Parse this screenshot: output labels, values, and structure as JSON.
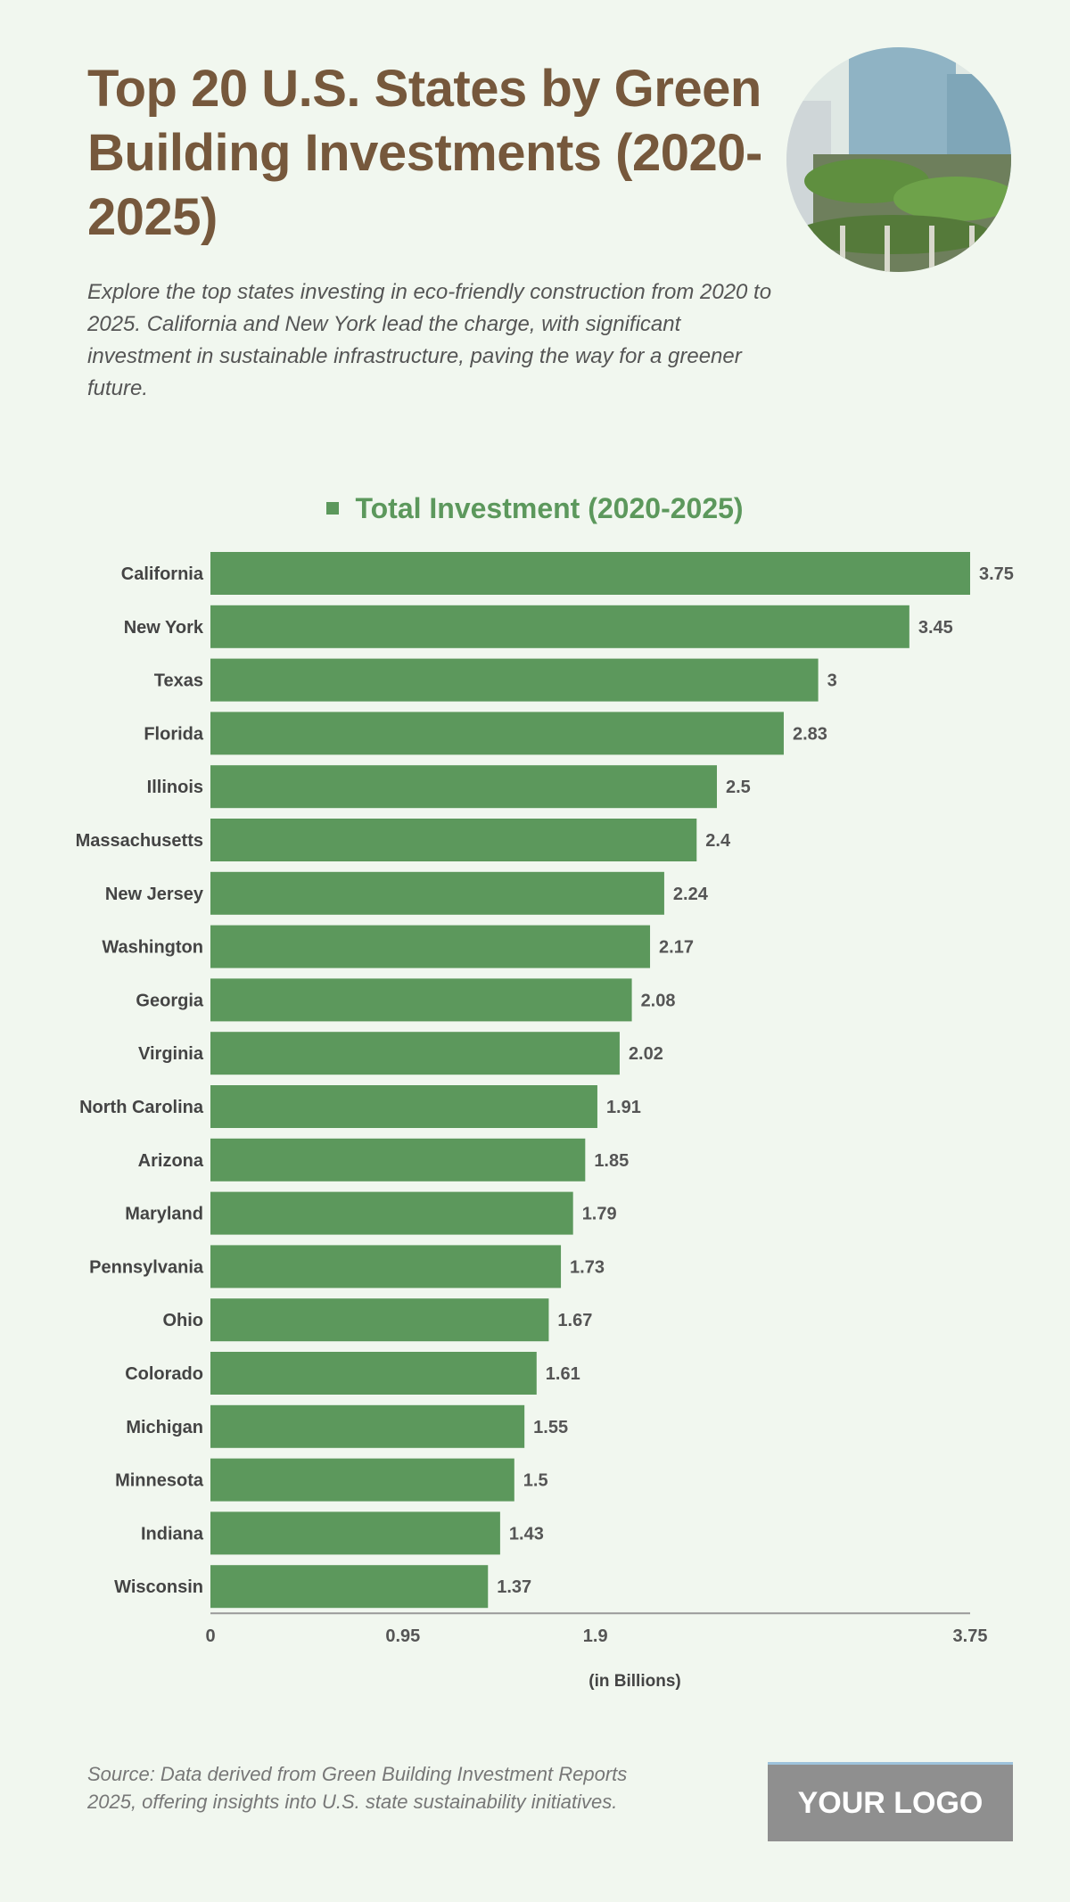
{
  "header": {
    "title": "Top 20 U.S. States by Green Building Investments (2020-2025)",
    "subtitle": "Explore the top states investing in eco-friendly construction from 2020 to 2025. California and New York lead the charge, with significant investment in sustainable infrastructure, paving the way for a greener future."
  },
  "chart_data": {
    "type": "bar",
    "orientation": "horizontal",
    "categories": [
      "California",
      "New York",
      "Texas",
      "Florida",
      "Illinois",
      "Massachusetts",
      "New Jersey",
      "Washington",
      "Georgia",
      "Virginia",
      "North Carolina",
      "Arizona",
      "Maryland",
      "Pennsylvania",
      "Ohio",
      "Colorado",
      "Michigan",
      "Minnesota",
      "Indiana",
      "Wisconsin"
    ],
    "series": [
      {
        "name": "Total Investment (2020-2025)",
        "values": [
          3.75,
          3.45,
          3,
          2.83,
          2.5,
          2.4,
          2.24,
          2.17,
          2.08,
          2.02,
          1.91,
          1.85,
          1.79,
          1.73,
          1.67,
          1.61,
          1.55,
          1.5,
          1.43,
          1.37
        ],
        "color": "#5c985c"
      }
    ],
    "xlabel": "(in Billions)",
    "xlim": [
      0,
      3.75
    ],
    "xticks": [
      "0",
      "0.95",
      "1.9",
      "3.75"
    ],
    "legend_position": "top",
    "grid": false
  },
  "footer": {
    "source": "Source: Data derived from Green Building Investment Reports 2025, offering insights into U.S. state sustainability initiatives.",
    "logo": "YOUR LOGO"
  },
  "colors": {
    "background": "#f1f7ef",
    "title": "#76583c",
    "bar": "#5c985c"
  }
}
